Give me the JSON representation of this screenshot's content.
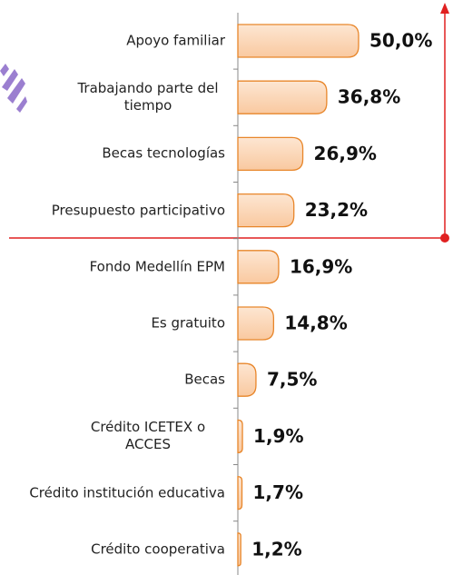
{
  "chart_data": {
    "type": "bar",
    "orientation": "horizontal",
    "categories": [
      "Apoyo familiar",
      "Trabajando parte del tiempo",
      "Becas tecnologías",
      "Presupuesto participativo",
      "Fondo Medellín EPM",
      "Es gratuito",
      "Becas",
      "Crédito ICETEX o ACCES",
      "Crédito institución educativa",
      "Crédito cooperativa"
    ],
    "values": [
      50.0,
      36.8,
      26.9,
      23.2,
      16.9,
      14.8,
      7.5,
      1.9,
      1.7,
      1.2
    ],
    "value_labels": [
      "50,0%",
      "36,8%",
      "26,9%",
      "23,2%",
      "16,9%",
      "14,8%",
      "7,5%",
      "1,9%",
      "1,7%",
      "1,2%"
    ],
    "color": "#fbd3b0",
    "xlim": [
      0,
      50
    ]
  }
}
